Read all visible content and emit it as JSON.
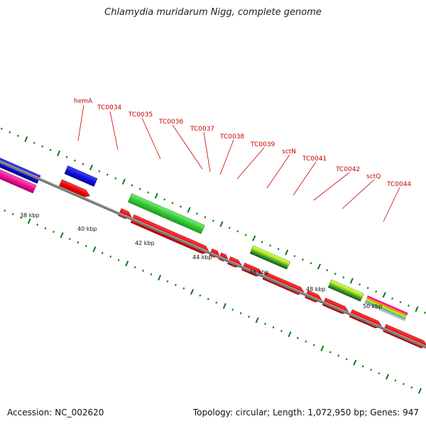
{
  "header": {
    "title": "Chlamydia muridarum Nigg, complete genome"
  },
  "footer": {
    "accession": "Accession: NC_002620",
    "stats": "Topology: circular; Length: 1,072,950 bp; Genes: 947"
  },
  "map": {
    "gene_labels": [
      "hemA",
      "TC0034",
      "TC0035",
      "TC0036",
      "TC0037",
      "TC0038",
      "TC0039",
      "sctN",
      "TC0041",
      "TC0042",
      "sctQ",
      "TC0044"
    ],
    "kbp_ticks": [
      "38 kbp",
      "40 kbp",
      "42 kbp",
      "44 kbp",
      "46 kbp",
      "48 kbp",
      "50 kbp"
    ],
    "colors": {
      "cds": "#ee0000",
      "blue_feature": "#1111dd",
      "pink_feature": "#ee1199",
      "green_feature": "#33cc33",
      "lime_feature": "#aaee22",
      "dark_green": "#227722",
      "tick": "#117711",
      "label": "#cc0000",
      "backbone": "#777777"
    }
  }
}
